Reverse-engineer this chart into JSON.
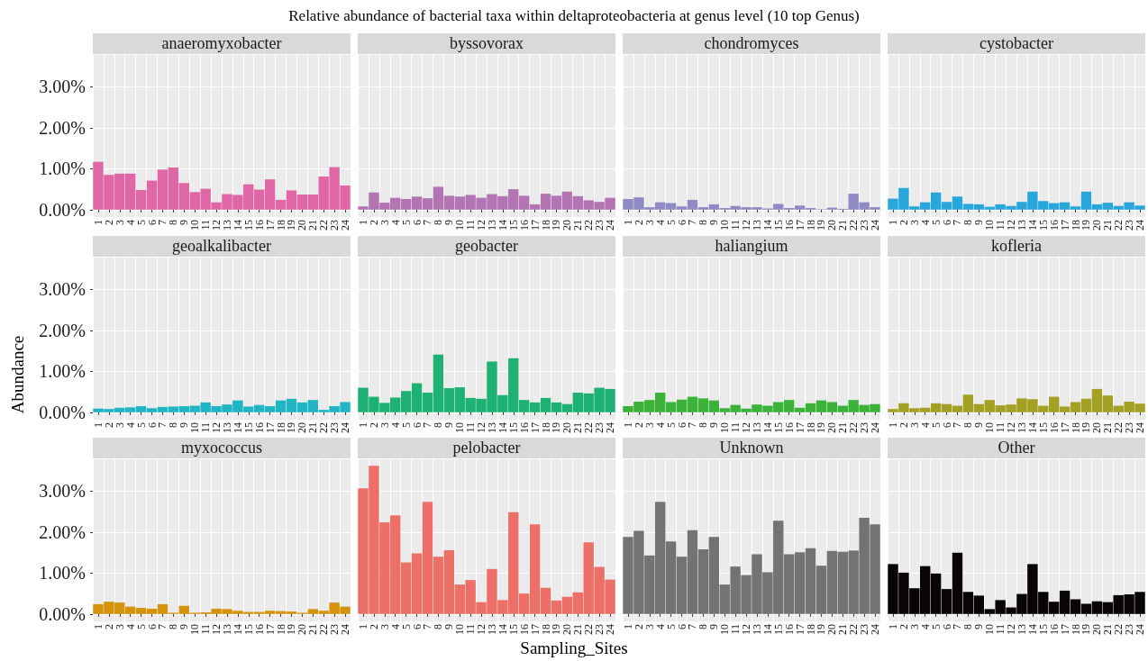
{
  "chart_data": [
    {
      "type": "bar",
      "title": "anaeromyxobacter",
      "annotations": [
        "Relative abundance of bacterial taxa within deltaproteobacteria at genus level (10 top Genus)"
      ],
      "categories": [
        "1",
        "2",
        "3",
        "4",
        "5",
        "6",
        "7",
        "8",
        "9",
        "10",
        "11",
        "12",
        "13",
        "14",
        "15",
        "16",
        "17",
        "18",
        "19",
        "20",
        "21",
        "22",
        "23",
        "24"
      ],
      "values": [
        1.17,
        0.85,
        0.88,
        0.88,
        0.48,
        0.71,
        0.98,
        1.03,
        0.65,
        0.43,
        0.51,
        0.18,
        0.38,
        0.36,
        0.62,
        0.49,
        0.74,
        0.24,
        0.47,
        0.37,
        0.37,
        0.81,
        1.04,
        0.59
      ],
      "color": "#e066a5",
      "ylim": [
        -0.18,
        3.78
      ],
      "yticks": [
        {
          "value": 0,
          "label": "0.00%"
        },
        {
          "value": 1,
          "label": "1.00%"
        },
        {
          "value": 2,
          "label": "2.00%"
        },
        {
          "value": 3,
          "label": "3.00%"
        }
      ],
      "grid": true
    },
    {
      "type": "bar",
      "title": "byssovorax",
      "categories": [
        "1",
        "2",
        "3",
        "4",
        "5",
        "6",
        "7",
        "8",
        "9",
        "10",
        "11",
        "12",
        "13",
        "14",
        "15",
        "16",
        "17",
        "18",
        "19",
        "20",
        "21",
        "22",
        "23",
        "24"
      ],
      "values": [
        0.08,
        0.42,
        0.17,
        0.29,
        0.26,
        0.32,
        0.28,
        0.56,
        0.34,
        0.32,
        0.36,
        0.29,
        0.38,
        0.33,
        0.5,
        0.34,
        0.13,
        0.39,
        0.34,
        0.44,
        0.33,
        0.23,
        0.19,
        0.29
      ],
      "color": "#b374b4",
      "ylim": [
        -0.18,
        3.78
      ],
      "yticks": [
        0,
        1,
        2,
        3
      ],
      "grid": true,
      "tick_labels": "x"
    },
    {
      "type": "bar",
      "title": "chondromyces",
      "categories": [
        "1",
        "2",
        "3",
        "4",
        "5",
        "6",
        "7",
        "8",
        "9",
        "10",
        "11",
        "12",
        "13",
        "14",
        "15",
        "16",
        "17",
        "18",
        "19",
        "20",
        "21",
        "22",
        "23",
        "24"
      ],
      "values": [
        0.26,
        0.3,
        0.06,
        0.18,
        0.16,
        0.08,
        0.24,
        0.06,
        0.13,
        0.04,
        0.09,
        0.06,
        0.06,
        0.03,
        0.14,
        0.04,
        0.1,
        0.04,
        0.01,
        0.05,
        0.02,
        0.39,
        0.18,
        0.06
      ],
      "color": "#8f8ac6",
      "ylim": [
        -0.18,
        3.78
      ],
      "yticks": [
        0,
        1,
        2,
        3
      ],
      "grid": true,
      "tick_labels": "x"
    },
    {
      "type": "bar",
      "title": "cystobacter",
      "categories": [
        "1",
        "2",
        "3",
        "4",
        "5",
        "6",
        "7",
        "8",
        "9",
        "10",
        "11",
        "12",
        "13",
        "14",
        "15",
        "16",
        "17",
        "18",
        "19",
        "20",
        "21",
        "22",
        "23",
        "24"
      ],
      "values": [
        0.27,
        0.53,
        0.08,
        0.18,
        0.42,
        0.19,
        0.32,
        0.14,
        0.13,
        0.07,
        0.13,
        0.09,
        0.19,
        0.44,
        0.21,
        0.16,
        0.18,
        0.08,
        0.44,
        0.13,
        0.17,
        0.09,
        0.18,
        0.1
      ],
      "color": "#28a7dd",
      "ylim": [
        -0.18,
        3.78
      ],
      "yticks": [
        0,
        1,
        2,
        3
      ],
      "grid": true,
      "tick_labels": "x"
    },
    {
      "type": "bar",
      "title": "geoalkalibacter",
      "ylabel": "Abundance",
      "categories": [
        "1",
        "2",
        "3",
        "4",
        "5",
        "6",
        "7",
        "8",
        "9",
        "10",
        "11",
        "12",
        "13",
        "14",
        "15",
        "16",
        "17",
        "18",
        "19",
        "20",
        "21",
        "22",
        "23",
        "24"
      ],
      "values": [
        0.09,
        0.08,
        0.11,
        0.12,
        0.15,
        0.1,
        0.13,
        0.14,
        0.15,
        0.16,
        0.24,
        0.15,
        0.19,
        0.29,
        0.14,
        0.18,
        0.15,
        0.29,
        0.33,
        0.24,
        0.3,
        0.06,
        0.15,
        0.25
      ],
      "color": "#1fb5c4",
      "ylim": [
        -0.18,
        3.78
      ],
      "yticks": [
        {
          "value": 0,
          "label": "0.00%"
        },
        {
          "value": 1,
          "label": "1.00%"
        },
        {
          "value": 2,
          "label": "2.00%"
        },
        {
          "value": 3,
          "label": "3.00%"
        }
      ],
      "grid": true
    },
    {
      "type": "bar",
      "title": "geobacter",
      "categories": [
        "1",
        "2",
        "3",
        "4",
        "5",
        "6",
        "7",
        "8",
        "9",
        "10",
        "11",
        "12",
        "13",
        "14",
        "15",
        "16",
        "17",
        "18",
        "19",
        "20",
        "21",
        "22",
        "23",
        "24"
      ],
      "values": [
        0.6,
        0.38,
        0.23,
        0.36,
        0.52,
        0.71,
        0.48,
        1.41,
        0.59,
        0.61,
        0.35,
        0.33,
        1.24,
        0.42,
        1.32,
        0.3,
        0.24,
        0.35,
        0.24,
        0.2,
        0.48,
        0.46,
        0.6,
        0.57
      ],
      "color": "#1db174",
      "ylim": [
        -0.18,
        3.78
      ],
      "yticks": [
        0,
        1,
        2,
        3
      ],
      "grid": true,
      "tick_labels": "x"
    },
    {
      "type": "bar",
      "title": "haliangium",
      "categories": [
        "1",
        "2",
        "3",
        "4",
        "5",
        "6",
        "7",
        "8",
        "9",
        "10",
        "11",
        "12",
        "13",
        "14",
        "15",
        "16",
        "17",
        "18",
        "19",
        "20",
        "21",
        "22",
        "23",
        "24"
      ],
      "values": [
        0.15,
        0.26,
        0.3,
        0.48,
        0.25,
        0.31,
        0.38,
        0.34,
        0.29,
        0.1,
        0.18,
        0.09,
        0.19,
        0.16,
        0.25,
        0.3,
        0.11,
        0.22,
        0.29,
        0.25,
        0.16,
        0.3,
        0.18,
        0.2
      ],
      "color": "#3bb23a",
      "ylim": [
        -0.18,
        3.78
      ],
      "yticks": [
        0,
        1,
        2,
        3
      ],
      "grid": true,
      "tick_labels": "x"
    },
    {
      "type": "bar",
      "title": "kofleria",
      "categories": [
        "1",
        "2",
        "3",
        "4",
        "5",
        "6",
        "7",
        "8",
        "9",
        "10",
        "11",
        "12",
        "13",
        "14",
        "15",
        "16",
        "17",
        "18",
        "19",
        "20",
        "21",
        "22",
        "23",
        "24"
      ],
      "values": [
        0.08,
        0.22,
        0.1,
        0.11,
        0.22,
        0.2,
        0.16,
        0.43,
        0.2,
        0.3,
        0.17,
        0.19,
        0.34,
        0.32,
        0.16,
        0.38,
        0.14,
        0.25,
        0.33,
        0.57,
        0.41,
        0.16,
        0.26,
        0.21
      ],
      "color": "#a3a024",
      "ylim": [
        -0.18,
        3.78
      ],
      "yticks": [
        0,
        1,
        2,
        3
      ],
      "grid": true,
      "tick_labels": "x"
    },
    {
      "type": "bar",
      "title": "myxococcus",
      "categories": [
        "1",
        "2",
        "3",
        "4",
        "5",
        "6",
        "7",
        "8",
        "9",
        "10",
        "11",
        "12",
        "13",
        "14",
        "15",
        "16",
        "17",
        "18",
        "19",
        "20",
        "21",
        "22",
        "23",
        "24"
      ],
      "values": [
        0.24,
        0.3,
        0.28,
        0.18,
        0.15,
        0.13,
        0.24,
        0.03,
        0.2,
        0.03,
        0.04,
        0.13,
        0.12,
        0.08,
        0.05,
        0.05,
        0.08,
        0.07,
        0.06,
        0.03,
        0.12,
        0.08,
        0.28,
        0.18
      ],
      "color": "#d5930c",
      "ylim": [
        -0.18,
        3.78
      ],
      "yticks": [
        {
          "value": 0,
          "label": "0.00%"
        },
        {
          "value": 1,
          "label": "1.00%"
        },
        {
          "value": 2,
          "label": "2.00%"
        },
        {
          "value": 3,
          "label": "3.00%"
        }
      ],
      "grid": true
    },
    {
      "type": "bar",
      "title": "pelobacter",
      "xlabel": "Sampling_Sites",
      "categories": [
        "1",
        "2",
        "3",
        "4",
        "5",
        "6",
        "7",
        "8",
        "9",
        "10",
        "11",
        "12",
        "13",
        "14",
        "15",
        "16",
        "17",
        "18",
        "19",
        "20",
        "21",
        "22",
        "23",
        "24"
      ],
      "values": [
        3.07,
        3.62,
        2.24,
        2.41,
        1.26,
        1.48,
        2.74,
        1.4,
        1.56,
        0.72,
        0.83,
        0.29,
        1.1,
        0.34,
        2.49,
        0.5,
        2.19,
        0.64,
        0.33,
        0.42,
        0.53,
        1.75,
        1.15,
        0.84
      ],
      "color": "#ec7068",
      "ylim": [
        -0.18,
        3.78
      ],
      "yticks": [
        0,
        1,
        2,
        3
      ],
      "grid": true,
      "tick_labels": "x"
    },
    {
      "type": "bar",
      "title": "Unknown",
      "categories": [
        "1",
        "2",
        "3",
        "4",
        "5",
        "6",
        "7",
        "8",
        "9",
        "10",
        "11",
        "12",
        "13",
        "14",
        "15",
        "16",
        "17",
        "18",
        "19",
        "20",
        "21",
        "22",
        "23",
        "24"
      ],
      "values": [
        1.88,
        2.03,
        1.43,
        2.74,
        1.77,
        1.4,
        2.05,
        1.58,
        1.88,
        0.72,
        1.16,
        0.95,
        1.46,
        1.02,
        2.28,
        1.46,
        1.51,
        1.61,
        1.18,
        1.54,
        1.52,
        1.55,
        2.35,
        2.19
      ],
      "color": "#737373",
      "ylim": [
        -0.18,
        3.78
      ],
      "yticks": [
        0,
        1,
        2,
        3
      ],
      "grid": true,
      "tick_labels": "x"
    },
    {
      "type": "bar",
      "title": "Other",
      "categories": [
        "1",
        "2",
        "3",
        "4",
        "5",
        "6",
        "7",
        "8",
        "9",
        "10",
        "11",
        "12",
        "13",
        "14",
        "15",
        "16",
        "17",
        "18",
        "19",
        "20",
        "21",
        "22",
        "23",
        "24"
      ],
      "values": [
        1.22,
        1.01,
        0.63,
        1.17,
        0.99,
        0.61,
        1.5,
        0.54,
        0.45,
        0.12,
        0.34,
        0.16,
        0.49,
        1.22,
        0.54,
        0.3,
        0.57,
        0.36,
        0.25,
        0.31,
        0.29,
        0.46,
        0.48,
        0.54
      ],
      "color": "#0a0505",
      "ylim": [
        -0.18,
        3.78
      ],
      "yticks": [
        0,
        1,
        2,
        3
      ],
      "grid": true,
      "tick_labels": "x"
    }
  ]
}
